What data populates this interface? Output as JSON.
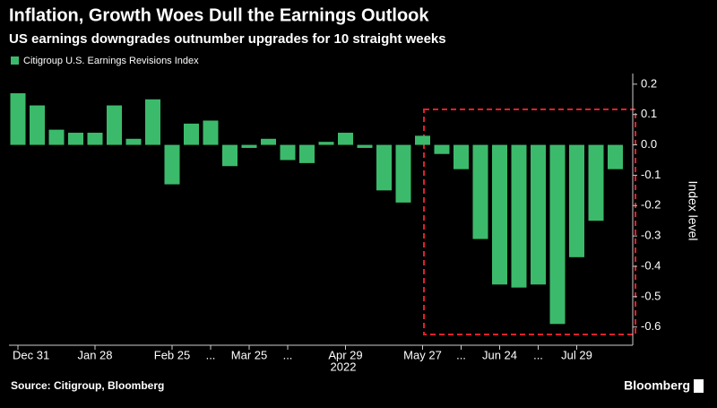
{
  "chart_data": {
    "type": "bar",
    "title": "Inflation, Growth Woes Dull the Earnings Outlook",
    "subtitle": "US earnings downgrades outnumber upgrades for 10 straight weeks",
    "series": [
      {
        "name": "Citigroup U.S. Earnings Revisions Index",
        "color": "#3cba6b",
        "values": [
          0.17,
          0.13,
          0.05,
          0.04,
          0.04,
          0.13,
          0.02,
          0.15,
          -0.13,
          0.07,
          0.08,
          -0.07,
          -0.01,
          0.02,
          -0.05,
          -0.06,
          0.01,
          0.04,
          -0.01,
          -0.15,
          -0.19,
          0.03,
          -0.03,
          -0.08,
          -0.31,
          -0.46,
          -0.47,
          -0.46,
          -0.59,
          -0.37,
          -0.25,
          -0.08
        ]
      }
    ],
    "categories": [
      "Dec 31",
      null,
      null,
      null,
      "Jan 28",
      null,
      null,
      null,
      "Feb 25",
      null,
      "...",
      null,
      "Mar 25",
      null,
      "...",
      null,
      null,
      "Apr 29",
      null,
      null,
      null,
      "May 27",
      null,
      "...",
      null,
      "Jun 24",
      null,
      "...",
      null,
      "Jul 29",
      null,
      null
    ],
    "x_sublabel": "2022",
    "y_label": "Index level",
    "ylim": [
      -0.66,
      0.235
    ],
    "yticks": [
      0.2,
      0.1,
      {
        "value": 0,
        "label": "0.0"
      },
      -0.1,
      -0.2,
      -0.3,
      -0.4,
      -0.5,
      -0.6
    ],
    "source": "Source: Citigroup, Bloomberg",
    "brand": "Bloomberg"
  }
}
